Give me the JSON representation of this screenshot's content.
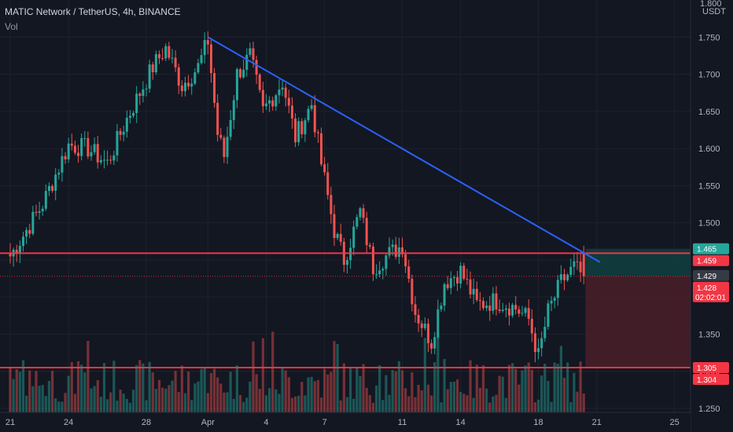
{
  "header": {
    "title": "MATIC Network / TetherUS, 4h, BINANCE",
    "volume_label": "Vol"
  },
  "axis": {
    "currency": "USDT",
    "top_label": "1.800"
  },
  "colors": {
    "background": "#131722",
    "grid": "#1e222d",
    "up": "#26a69a",
    "down": "#ef5350",
    "trendline": "#2962ff",
    "level": "#f23645",
    "profit_zone": "#0f3d3e",
    "loss_zone": "#4a1f28"
  },
  "chart_data": {
    "type": "candlestick",
    "title": "MATIC Network / TetherUS, 4h, BINANCE",
    "ylim": [
      1.25,
      1.8
    ],
    "y_ticks": [
      "1.750",
      "1.700",
      "1.650",
      "1.600",
      "1.550",
      "1.500",
      "1.450",
      "1.400",
      "1.350",
      "1.300",
      "1.250"
    ],
    "y_tick_values": [
      1.75,
      1.7,
      1.65,
      1.6,
      1.55,
      1.5,
      1.45,
      1.4,
      1.35,
      1.3,
      1.25
    ],
    "x_ticks": [
      "21",
      "24",
      "28",
      "Apr",
      "4",
      "7",
      "11",
      "14",
      "18",
      "21",
      "25"
    ],
    "x_tick_bars": [
      0,
      18,
      42,
      61,
      79,
      97,
      121,
      139,
      163,
      181,
      205
    ],
    "grid": true,
    "key_points": [
      {
        "bar": 0,
        "close": 1.455
      },
      {
        "bar": 10,
        "close": 1.525
      },
      {
        "bar": 18,
        "close": 1.605
      },
      {
        "bar": 24,
        "close": 1.6
      },
      {
        "bar": 30,
        "close": 1.58
      },
      {
        "bar": 36,
        "close": 1.64
      },
      {
        "bar": 44,
        "close": 1.71
      },
      {
        "bar": 48,
        "close": 1.735
      },
      {
        "bar": 53,
        "close": 1.685
      },
      {
        "bar": 58,
        "close": 1.71
      },
      {
        "bar": 61,
        "close": 1.745
      },
      {
        "bar": 64,
        "close": 1.62
      },
      {
        "bar": 66,
        "close": 1.59
      },
      {
        "bar": 70,
        "close": 1.7
      },
      {
        "bar": 74,
        "close": 1.725
      },
      {
        "bar": 78,
        "close": 1.65
      },
      {
        "bar": 84,
        "close": 1.69
      },
      {
        "bar": 88,
        "close": 1.615
      },
      {
        "bar": 93,
        "close": 1.66
      },
      {
        "bar": 96,
        "close": 1.58
      },
      {
        "bar": 100,
        "close": 1.49
      },
      {
        "bar": 103,
        "close": 1.45
      },
      {
        "bar": 108,
        "close": 1.515
      },
      {
        "bar": 112,
        "close": 1.44
      },
      {
        "bar": 116,
        "close": 1.455
      },
      {
        "bar": 121,
        "close": 1.47
      },
      {
        "bar": 125,
        "close": 1.38
      },
      {
        "bar": 130,
        "close": 1.34
      },
      {
        "bar": 134,
        "close": 1.42
      },
      {
        "bar": 139,
        "close": 1.435
      },
      {
        "bar": 144,
        "close": 1.39
      },
      {
        "bar": 150,
        "close": 1.395
      },
      {
        "bar": 156,
        "close": 1.385
      },
      {
        "bar": 160,
        "close": 1.37
      },
      {
        "bar": 163,
        "close": 1.32
      },
      {
        "bar": 166,
        "close": 1.38
      },
      {
        "bar": 170,
        "close": 1.42
      },
      {
        "bar": 174,
        "close": 1.44
      },
      {
        "bar": 177,
        "close": 1.428
      }
    ],
    "last_bar": 177,
    "trendline": {
      "from": {
        "bar": 61,
        "price": 1.75
      },
      "to": {
        "bar": 182,
        "price": 1.447
      }
    },
    "levels": [
      {
        "name": "resistance",
        "price": 1.459
      },
      {
        "name": "support",
        "price": 1.305
      }
    ],
    "position": {
      "entry": 1.428,
      "target": 1.465,
      "stop": 1.305,
      "start_bar": 177,
      "end_bar": 206
    },
    "price_badges": [
      {
        "label": "1.465",
        "price": 1.465,
        "color": "#26a69a"
      },
      {
        "label": "1.459",
        "price": 1.459,
        "color": "#f23645"
      },
      {
        "label": "1.429",
        "price": 1.429,
        "color": "#363a45"
      },
      {
        "label": "1.428",
        "price": 1.428,
        "color": "#f23645",
        "sub": "02:02:01"
      },
      {
        "label": "1.305",
        "price": 1.305,
        "color": "#f23645"
      },
      {
        "label": "1.304",
        "price": 1.304,
        "color": "#f23645"
      }
    ],
    "volume_max": 100
  }
}
